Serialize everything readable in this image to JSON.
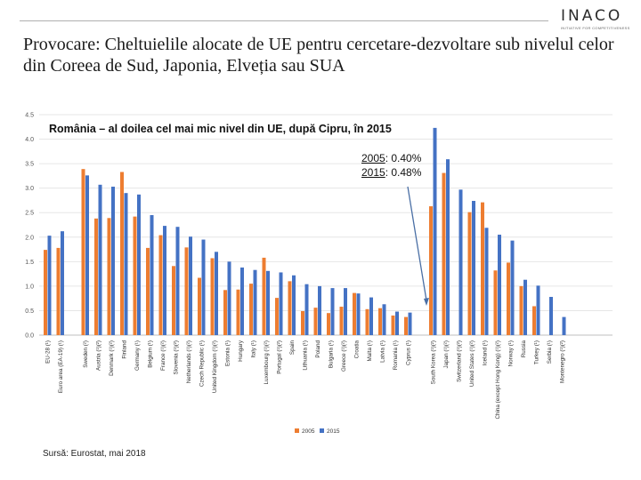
{
  "header": {
    "logo_text": "INACO",
    "logo_tagline": "INITIATIVE FOR COMPETITIVENESS",
    "title": "Provocare: Cheltuielile alocate de UE pentru cercetare-dezvoltare sub nivelul celor din Coreea de Sud, Japonia, Elveția sau SUA"
  },
  "annotation": {
    "subtitle": "România – al doilea cel mai mic nivel din UE, după Cipru, în 2015",
    "line1_year": "2005",
    "line1_value": ": 0.40%",
    "line2_year": "2015",
    "line2_value": ": 0.48%"
  },
  "source": "Sursă: Eurostat, mai 2018",
  "chart_data": {
    "type": "bar",
    "title": "",
    "xlabel": "",
    "ylabel": "",
    "ylim": [
      0,
      4.5
    ],
    "yticks": [
      "0.0",
      "0.5",
      "1.0",
      "1.5",
      "2.0",
      "2.5",
      "3.0",
      "3.5",
      "4.0",
      "4.5"
    ],
    "grid": true,
    "legend_position": "bottom-center",
    "colors": {
      "2005": "#ed7d31",
      "2015": "#4472c4"
    },
    "groups": [
      [
        [
          "EU-28 (¹)",
          1.74,
          2.03
        ],
        [
          "Euro area (EA-19) (¹)",
          1.78,
          2.12
        ]
      ],
      [
        [
          "Sweden (²)",
          3.39,
          3.26
        ],
        [
          "Austria (¹)(²)",
          2.38,
          3.07
        ],
        [
          "Denmark (¹)(²)",
          2.39,
          3.03
        ],
        [
          "Finland",
          3.33,
          2.9
        ],
        [
          "Germany (¹)",
          2.42,
          2.87
        ],
        [
          "Belgium (¹)",
          1.78,
          2.45
        ],
        [
          "France (¹)(²)",
          2.04,
          2.23
        ],
        [
          "Slovenia (¹)(²)",
          1.41,
          2.21
        ],
        [
          "Netherlands (¹)(²)",
          1.79,
          2.01
        ],
        [
          "Czech Republic (¹)",
          1.17,
          1.95
        ],
        [
          "United Kingdom (¹)(²)",
          1.57,
          1.7
        ],
        [
          "Estonia (¹)",
          0.92,
          1.5
        ],
        [
          "Hungary",
          0.93,
          1.38
        ],
        [
          "Italy (¹)",
          1.05,
          1.33
        ],
        [
          "Luxembourg (¹)(²)",
          1.58,
          1.31
        ],
        [
          "Portugal (¹)(²)",
          0.76,
          1.28
        ],
        [
          "Spain",
          1.1,
          1.22
        ],
        [
          "Lithuania (¹)",
          0.49,
          1.04
        ],
        [
          "Poland",
          0.56,
          1.0
        ],
        [
          "Bulgaria (¹)",
          0.45,
          0.96
        ],
        [
          "Greece (¹)(²)",
          0.58,
          0.96
        ],
        [
          "Croatia",
          0.86,
          0.85
        ],
        [
          "Malta (¹)",
          0.53,
          0.77
        ],
        [
          "Latvia (¹)",
          0.55,
          0.63
        ],
        [
          "Romania (¹)",
          0.4,
          0.48
        ],
        [
          "Cyprus (¹)",
          0.37,
          0.46
        ]
      ],
      [
        [
          "South Korea (¹)(²)",
          2.63,
          4.23
        ],
        [
          "Japan (¹)(²)",
          3.31,
          3.59
        ],
        [
          "Switzerland (¹)(²)",
          null,
          2.97
        ],
        [
          "United States (¹)(²)",
          2.51,
          2.74
        ],
        [
          "Iceland (¹)",
          2.71,
          2.19
        ],
        [
          "China (except Hong Kong) (¹)(²)",
          1.32,
          2.05
        ],
        [
          "Norway (¹)",
          1.48,
          1.93
        ],
        [
          "Russia",
          1.0,
          1.13
        ],
        [
          "Turkey (¹)",
          0.59,
          1.01
        ],
        [
          "Serbia (¹)",
          null,
          0.78
        ],
        [
          "Montenegro (¹)(²)",
          null,
          0.37
        ]
      ]
    ],
    "series": [
      {
        "name": "2005"
      },
      {
        "name": "2015"
      }
    ]
  }
}
